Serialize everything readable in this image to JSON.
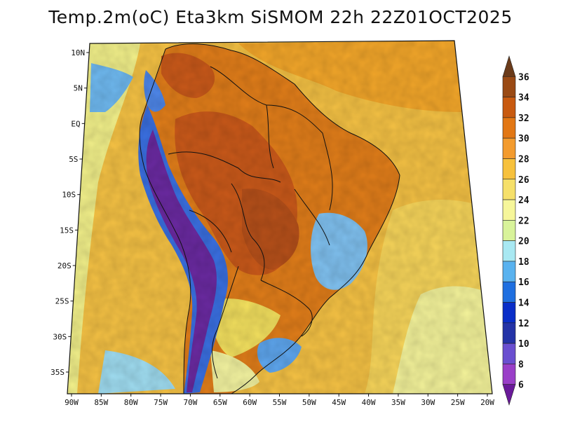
{
  "title": "Temp.2m(oC) Eta3km SiSMOM 22h 22Z01OCT2025",
  "map": {
    "variable": "Temp.2m(oC)",
    "model": "Eta3km SiSMOM",
    "lat_labels": [
      "10N",
      "5N",
      "EQ",
      "5S",
      "10S",
      "15S",
      "20S",
      "25S",
      "30S",
      "35S"
    ],
    "lon_labels": [
      "90W",
      "85W",
      "80W",
      "75W",
      "70W",
      "65W",
      "60W",
      "55W",
      "50W",
      "45W",
      "40W",
      "35W",
      "30W",
      "25W",
      "20W"
    ]
  },
  "colorbar": {
    "labels": [
      "36",
      "34",
      "32",
      "30",
      "28",
      "26",
      "24",
      "22",
      "20",
      "18",
      "16",
      "14",
      "12",
      "10",
      "8",
      "6"
    ],
    "colors": [
      "#6b3b1a",
      "#9a4a14",
      "#c85a10",
      "#e27714",
      "#f39b2e",
      "#f7c13c",
      "#f6e06a",
      "#f6f69a",
      "#d8f39a",
      "#a8e8f2",
      "#59b2ef",
      "#1f6fe0",
      "#0a2ec8",
      "#2433a7",
      "#6a4fd0",
      "#9a3fc8",
      "#6a1a9a"
    ]
  },
  "palette": {
    "ocean_warm": "#f3b13a",
    "ocean_mid": "#f6d25a",
    "ocean_cool": "#eef49a",
    "land_hot": "#d9641e",
    "land_very_hot": "#b8531a",
    "highland_cool": "#5f9fef",
    "andes_cold": "#7a2aa8",
    "border": "#111111"
  }
}
